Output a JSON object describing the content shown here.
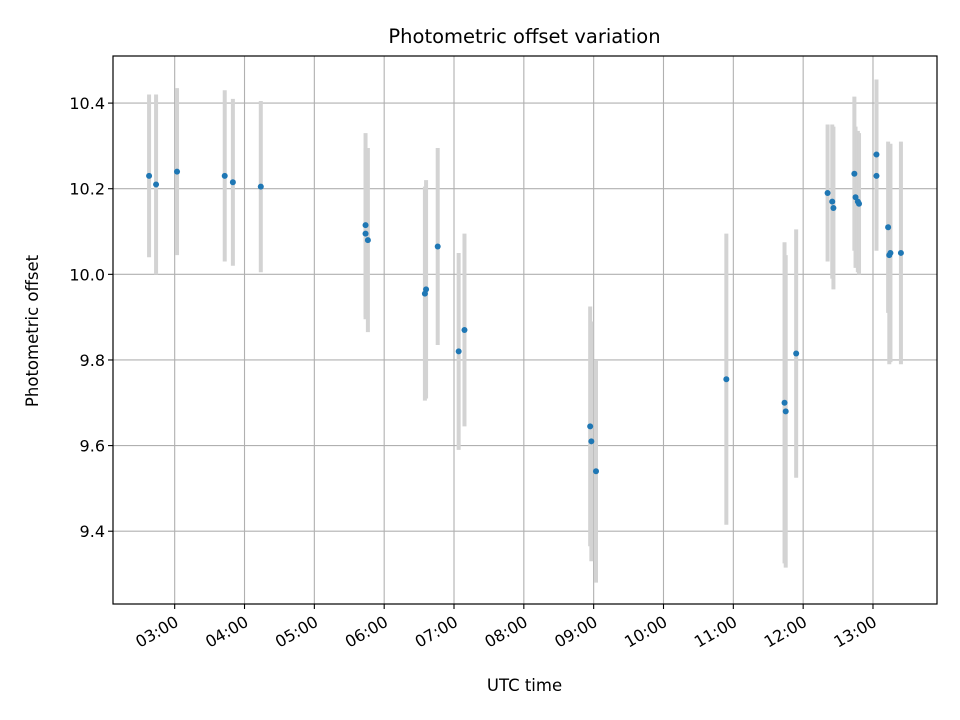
{
  "chart_data": {
    "type": "scatter",
    "title": "Photometric offset variation",
    "xlabel": "UTC time",
    "ylabel": "Photometric offset",
    "x_ticks": [
      "03:00",
      "04:00",
      "05:00",
      "06:00",
      "07:00",
      "08:00",
      "09:00",
      "10:00",
      "11:00",
      "12:00",
      "13:00"
    ],
    "y_ticks": [
      "9.4",
      "9.6",
      "9.8",
      "10.0",
      "10.2",
      "10.4"
    ],
    "xlim": [
      "02:07",
      "13:55"
    ],
    "ylim": [
      9.23,
      10.51
    ],
    "grid": true,
    "marker_color": "#1f77b4",
    "errorbar_color": "#d3d3d3",
    "points": [
      {
        "x": "02:38",
        "y": 10.23,
        "err": 0.19
      },
      {
        "x": "02:44",
        "y": 10.21,
        "err": 0.21
      },
      {
        "x": "03:02",
        "y": 10.24,
        "err": 0.195
      },
      {
        "x": "03:43",
        "y": 10.23,
        "err": 0.2
      },
      {
        "x": "03:50",
        "y": 10.215,
        "err": 0.195
      },
      {
        "x": "04:14",
        "y": 10.205,
        "err": 0.2
      },
      {
        "x": "05:44",
        "y": 10.115,
        "err": 0.215
      },
      {
        "x": "05:44",
        "y": 10.095,
        "err": 0.2
      },
      {
        "x": "05:46",
        "y": 10.08,
        "err": 0.215
      },
      {
        "x": "06:35",
        "y": 9.955,
        "err": 0.25
      },
      {
        "x": "06:36",
        "y": 9.965,
        "err": 0.255
      },
      {
        "x": "06:46",
        "y": 10.065,
        "err": 0.23
      },
      {
        "x": "07:04",
        "y": 9.82,
        "err": 0.23
      },
      {
        "x": "07:09",
        "y": 9.87,
        "err": 0.225
      },
      {
        "x": "08:57",
        "y": 9.645,
        "err": 0.28
      },
      {
        "x": "08:58",
        "y": 9.61,
        "err": 0.28
      },
      {
        "x": "09:02",
        "y": 9.54,
        "err": 0.26
      },
      {
        "x": "10:54",
        "y": 9.755,
        "err": 0.34
      },
      {
        "x": "11:44",
        "y": 9.7,
        "err": 0.375
      },
      {
        "x": "11:45",
        "y": 9.68,
        "err": 0.365
      },
      {
        "x": "11:54",
        "y": 9.815,
        "err": 0.29
      },
      {
        "x": "12:21",
        "y": 10.19,
        "err": 0.16
      },
      {
        "x": "12:25",
        "y": 10.17,
        "err": 0.18
      },
      {
        "x": "12:26",
        "y": 10.155,
        "err": 0.19
      },
      {
        "x": "12:44",
        "y": 10.235,
        "err": 0.18
      },
      {
        "x": "12:45",
        "y": 10.18,
        "err": 0.165
      },
      {
        "x": "12:47",
        "y": 10.17,
        "err": 0.165
      },
      {
        "x": "12:48",
        "y": 10.165,
        "err": 0.165
      },
      {
        "x": "13:03",
        "y": 10.28,
        "err": 0.175
      },
      {
        "x": "13:03",
        "y": 10.23,
        "err": 0.175
      },
      {
        "x": "13:13",
        "y": 10.11,
        "err": 0.2
      },
      {
        "x": "13:14",
        "y": 10.045,
        "err": 0.255
      },
      {
        "x": "13:15",
        "y": 10.05,
        "err": 0.255
      },
      {
        "x": "13:24",
        "y": 10.05,
        "err": 0.26
      }
    ]
  }
}
